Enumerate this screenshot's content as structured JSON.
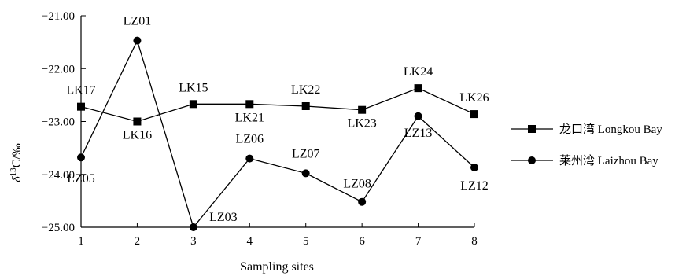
{
  "chart_data": {
    "type": "line",
    "title": "",
    "xlabel": "Sampling sites",
    "ylabel_parts": [
      "δ",
      "13",
      "C/‰"
    ],
    "x": [
      1,
      2,
      3,
      4,
      5,
      6,
      7,
      8
    ],
    "ylim": [
      -25.0,
      -21.0
    ],
    "yticks": [
      "−21.00",
      "−22.00",
      "−23.00",
      "−24.00",
      "−25.00"
    ],
    "ytick_values": [
      -21,
      -22,
      -23,
      -24,
      -25
    ],
    "xticks": [
      "1",
      "2",
      "3",
      "4",
      "5",
      "6",
      "7",
      "8"
    ],
    "grid": false,
    "legend_position": "right",
    "series": [
      {
        "name": "龙口湾 Longkou Bay",
        "marker": "square",
        "values": [
          -22.72,
          -23.0,
          -22.67,
          -22.67,
          -22.71,
          -22.78,
          -22.37,
          -22.86
        ],
        "labels": [
          "LK17",
          "LK16",
          "LK15",
          "LK21",
          "LK22",
          "LK23",
          "LK24",
          "LK26"
        ]
      },
      {
        "name": "莱州湾 Laizhou Bay",
        "marker": "circle",
        "values": [
          -23.68,
          -21.47,
          -25.0,
          -23.7,
          -23.98,
          -24.52,
          -22.9,
          -23.87
        ],
        "labels": [
          "LZ05",
          "LZ01",
          "LZ03",
          "LZ06",
          "LZ07",
          "LZ08",
          "LZ13",
          "LZ12"
        ]
      }
    ]
  }
}
